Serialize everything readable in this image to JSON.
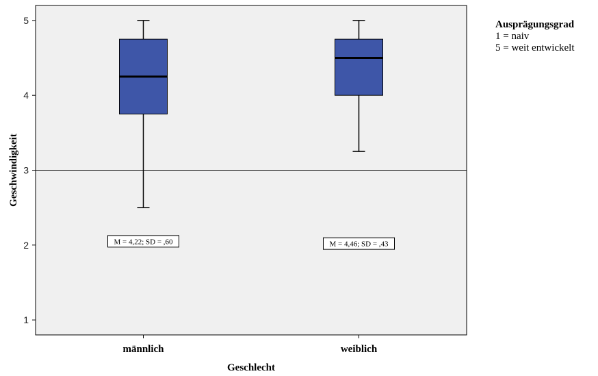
{
  "chart_data": {
    "type": "boxplot",
    "xlabel": "Geschlecht",
    "ylabel": "Geschwindigkeit",
    "ylim": [
      0.8,
      5.2
    ],
    "yticks": [
      1,
      2,
      3,
      4,
      5
    ],
    "grid": false,
    "reference_line": 3,
    "background": "#f0f0f0",
    "box_color": "#3e56a8",
    "categories": [
      "männlich",
      "weiblich"
    ],
    "boxes": [
      {
        "category": "männlich",
        "min": 2.5,
        "q1": 3.75,
        "median": 4.25,
        "q3": 4.75,
        "max": 5,
        "annotation": "M = 4,22; SD = ,60",
        "annotation_y": 2.05
      },
      {
        "category": "weiblich",
        "min": 3.25,
        "q1": 4.0,
        "median": 4.5,
        "q3": 4.75,
        "max": 5,
        "annotation": "M = 4,46; SD = ,43",
        "annotation_y": 2.02
      }
    ]
  },
  "legend": {
    "title": "Ausprägungsgrad",
    "line1": "1 = naiv",
    "line2": "5 = weit entwickelt"
  }
}
